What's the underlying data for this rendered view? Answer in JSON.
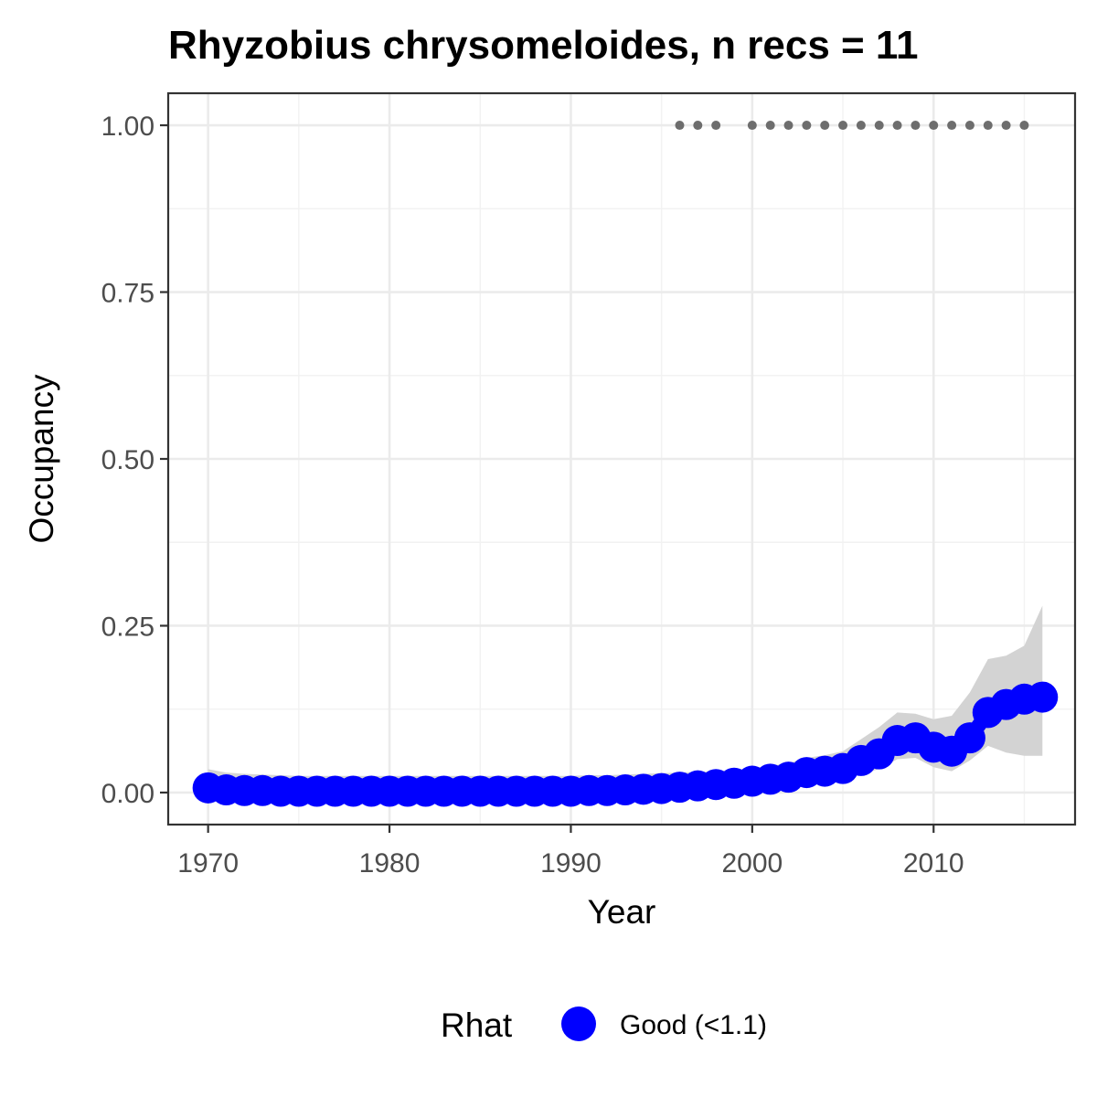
{
  "chart_data": {
    "type": "line",
    "title": "Rhyzobius chrysomeloides, n recs = 11",
    "xlabel": "Year",
    "ylabel": "Occupancy",
    "xlim": [
      1967.8,
      2017.8
    ],
    "ylim": [
      -0.048,
      1.048
    ],
    "x_ticks": [
      1970,
      1980,
      1990,
      2000,
      2010
    ],
    "x_tick_labels": [
      "1970",
      "1980",
      "1990",
      "2000",
      "2010"
    ],
    "y_ticks": [
      0,
      0.25,
      0.5,
      0.75,
      1.0
    ],
    "y_tick_labels": [
      "0.00",
      "0.25",
      "0.50",
      "0.75",
      "1.00"
    ],
    "x_minor_ticks": [
      1975,
      1985,
      1995,
      2005,
      2015
    ],
    "y_minor_ticks": [
      0.125,
      0.375,
      0.625,
      0.875
    ],
    "grid": true,
    "series": [
      {
        "name": "Good (<1.1)",
        "color": "#0000ff",
        "x": [
          1970,
          1971,
          1972,
          1973,
          1974,
          1975,
          1976,
          1977,
          1978,
          1979,
          1980,
          1981,
          1982,
          1983,
          1984,
          1985,
          1986,
          1987,
          1988,
          1989,
          1990,
          1991,
          1992,
          1993,
          1994,
          1995,
          1996,
          1997,
          1998,
          1999,
          2000,
          2001,
          2002,
          2003,
          2004,
          2005,
          2006,
          2007,
          2008,
          2009,
          2010,
          2011,
          2012,
          2013,
          2014,
          2015,
          2016
        ],
        "y": [
          0.007,
          0.004,
          0.003,
          0.003,
          0.002,
          0.002,
          0.002,
          0.002,
          0.002,
          0.002,
          0.002,
          0.002,
          0.002,
          0.002,
          0.002,
          0.002,
          0.002,
          0.002,
          0.002,
          0.002,
          0.002,
          0.003,
          0.003,
          0.004,
          0.005,
          0.006,
          0.008,
          0.01,
          0.012,
          0.014,
          0.017,
          0.02,
          0.023,
          0.03,
          0.032,
          0.036,
          0.048,
          0.058,
          0.078,
          0.082,
          0.068,
          0.062,
          0.082,
          0.12,
          0.132,
          0.14,
          0.143
        ],
        "lower": [
          0.0,
          0.0,
          0.0,
          0.0,
          0.0,
          0.0,
          0.0,
          0.0,
          0.0,
          0.0,
          0.0,
          0.0,
          0.0,
          0.0,
          0.0,
          0.0,
          0.0,
          0.0,
          0.0,
          0.0,
          0.0,
          0.0,
          0.0,
          0.0,
          0.0,
          0.0,
          0.001,
          0.002,
          0.003,
          0.005,
          0.007,
          0.009,
          0.011,
          0.016,
          0.018,
          0.02,
          0.028,
          0.035,
          0.05,
          0.052,
          0.038,
          0.032,
          0.048,
          0.07,
          0.06,
          0.055,
          0.055
        ],
        "upper": [
          0.035,
          0.03,
          0.028,
          0.027,
          0.026,
          0.025,
          0.025,
          0.025,
          0.025,
          0.025,
          0.025,
          0.025,
          0.025,
          0.025,
          0.025,
          0.025,
          0.025,
          0.025,
          0.025,
          0.025,
          0.025,
          0.026,
          0.026,
          0.027,
          0.028,
          0.029,
          0.03,
          0.031,
          0.032,
          0.034,
          0.037,
          0.04,
          0.044,
          0.052,
          0.056,
          0.062,
          0.08,
          0.098,
          0.12,
          0.118,
          0.11,
          0.115,
          0.15,
          0.2,
          0.205,
          0.22,
          0.28
        ]
      }
    ],
    "detections": {
      "color": "#6d6d6d",
      "y": 1.0,
      "x": [
        1996,
        1997,
        1998,
        2000,
        2001,
        2002,
        2003,
        2004,
        2005,
        2006,
        2007,
        2008,
        2009,
        2010,
        2011,
        2012,
        2013,
        2014,
        2015
      ]
    },
    "ribbon_color": "#d3d3d3",
    "legend": {
      "position": "bottom",
      "title": "Rhat",
      "entries": [
        "Good (<1.1)"
      ]
    }
  }
}
